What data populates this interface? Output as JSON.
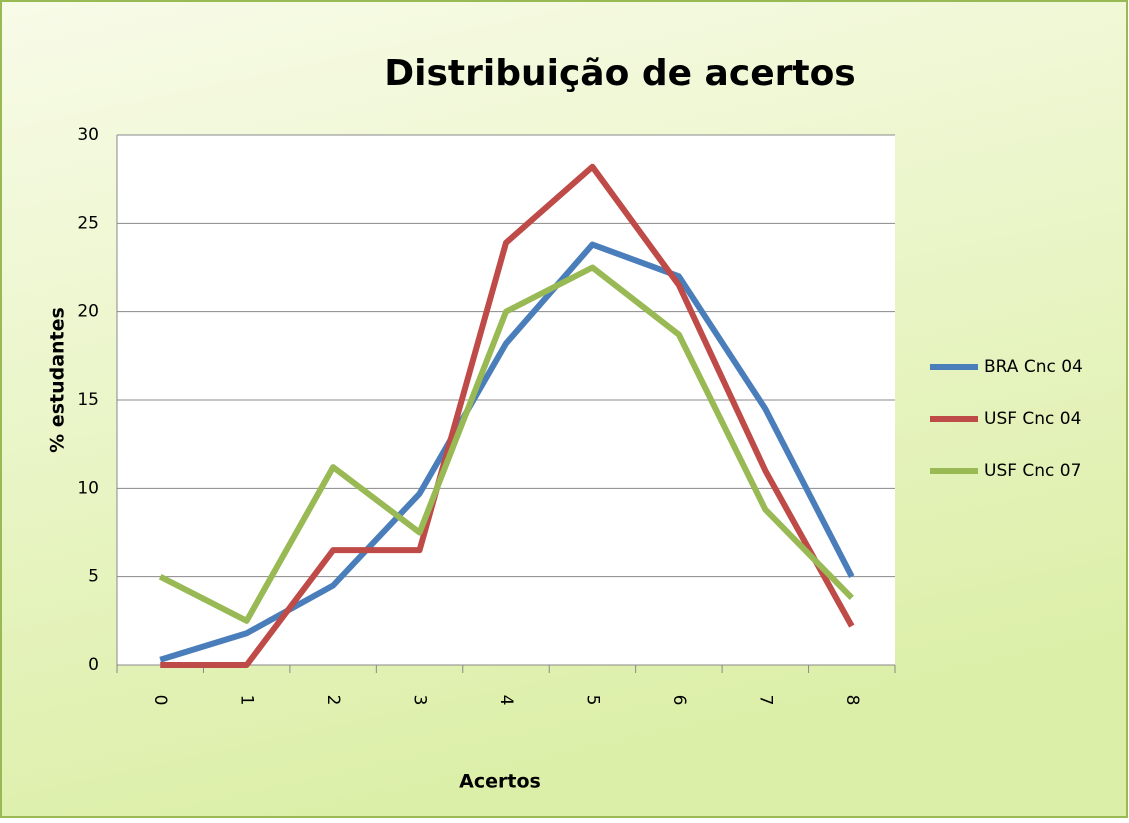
{
  "chart_data": {
    "type": "line",
    "title": "Distribuição de acertos",
    "x_label": "Acertos",
    "y_label": "% estudantes",
    "categories": [
      "0",
      "1",
      "2",
      "3",
      "4",
      "5",
      "6",
      "7",
      "8"
    ],
    "series": [
      {
        "name": "BRA Cnc 04",
        "color": "#4a7ebb",
        "values": [
          0.3,
          1.8,
          4.5,
          9.7,
          18.2,
          23.8,
          22,
          14.5,
          5
        ]
      },
      {
        "name": "USF Cnc 04",
        "color": "#be4b48",
        "values": [
          0,
          0,
          6.5,
          6.5,
          23.9,
          28.2,
          21.5,
          11,
          2.2
        ]
      },
      {
        "name": "USF Cnc 07",
        "color": "#98b954",
        "values": [
          5,
          2.5,
          11.2,
          7.5,
          20,
          22.5,
          18.7,
          8.8,
          3.8
        ]
      }
    ],
    "ylim": [
      0,
      30
    ],
    "yticks": [
      0,
      5,
      10,
      15,
      20,
      25,
      30
    ],
    "grid": true,
    "legend": "right"
  }
}
